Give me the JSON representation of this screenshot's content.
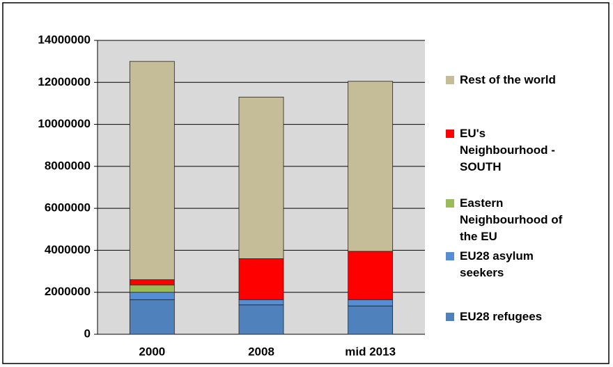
{
  "chart_data": {
    "type": "stacked_bar",
    "categories": [
      "2000",
      "2008",
      "mid 2013"
    ],
    "series": [
      {
        "name": "EU28 refugees",
        "color": "#4f81bd",
        "values": [
          1650000,
          1400000,
          1350000
        ]
      },
      {
        "name": "EU28 asylum seekers",
        "color": "#558ed5",
        "values": [
          350000,
          250000,
          300000
        ]
      },
      {
        "name": "Eastern Neighbourhood of the EU",
        "color": "#9bbb59",
        "values": [
          350000,
          0,
          0
        ]
      },
      {
        "name": "EU's Neighbourhood - SOUTH",
        "color": "#ff0000",
        "values": [
          250000,
          1950000,
          2300000
        ]
      },
      {
        "name": "Rest of the world",
        "color": "#c4bd97",
        "values": [
          10400000,
          7700000,
          8100000
        ]
      }
    ],
    "ylim": [
      0,
      14000000
    ],
    "yticks": [
      0,
      2000000,
      4000000,
      6000000,
      8000000,
      10000000,
      12000000,
      14000000
    ],
    "grid": true
  }
}
